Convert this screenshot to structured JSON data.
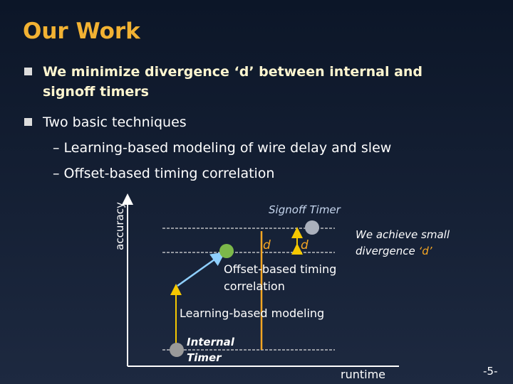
{
  "slide": {
    "title": "Our Work",
    "bullets": [
      {
        "lines": [
          "We minimize divergence ‘d’ between internal and",
          "signoff timers"
        ]
      },
      {
        "lines": [
          "Two basic techniques"
        ],
        "subitems": [
          "– Learning-based modeling of wire delay and slew",
          "– Offset-based timing correlation"
        ]
      }
    ],
    "diagram": {
      "y_axis_label": "accuracy",
      "x_axis_label": "runtime",
      "signoff_label": "Signoff  Timer",
      "internal_label": [
        "Internal",
        "Timer"
      ],
      "offset_label": [
        "Offset-based timing",
        "correlation"
      ],
      "learning_label": "Learning-based modeling",
      "d_labels": [
        "d",
        "d"
      ],
      "note": [
        "We achieve small",
        "divergence ",
        "‘d’"
      ]
    },
    "page_number": "-5-"
  }
}
